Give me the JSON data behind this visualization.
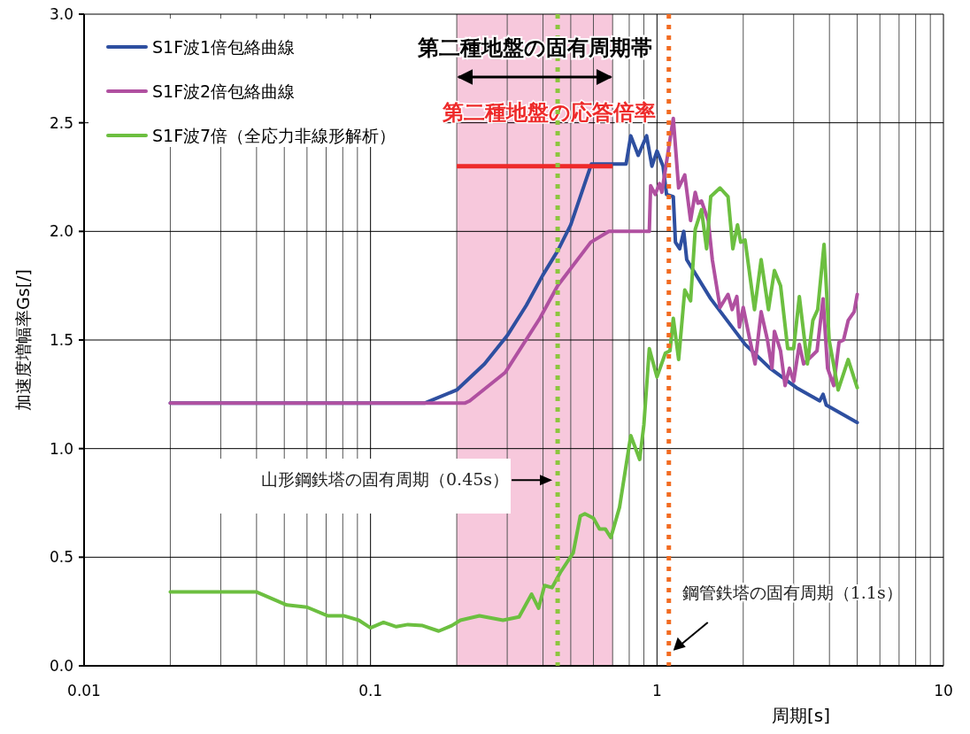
{
  "chart_data": {
    "type": "line",
    "xlabel": "周期[s]",
    "ylabel": "加速度増幅率Gs[/]",
    "log": "x",
    "xlim": [
      0.01,
      10
    ],
    "ylim": [
      0,
      3
    ],
    "xticks": [
      0.01,
      0.1,
      1,
      10
    ],
    "yticks": [
      {
        "value": 0,
        "label": "0.0"
      },
      0.5,
      {
        "value": 1,
        "label": "1.0"
      },
      1.5,
      {
        "value": 2,
        "label": "2.0"
      },
      2.5,
      {
        "value": 3,
        "label": "3.0"
      }
    ],
    "grid": true,
    "legend": "top left",
    "series": [
      {
        "name": "S1F波1倍包絡曲線",
        "color": "#2e4fa0",
        "x": [
          0.02,
          0.155,
          0.2,
          0.25,
          0.3,
          0.35,
          0.4,
          0.45,
          0.5,
          0.59,
          0.7,
          0.78,
          0.81,
          0.86,
          0.92,
          0.96,
          1.0,
          1.05,
          1.08,
          1.14,
          1.16,
          1.2,
          1.24,
          1.27,
          1.54,
          2.03,
          2.48,
          3.07,
          3.7,
          3.8,
          3.9,
          5.0
        ],
        "values": [
          1.21,
          1.21,
          1.27,
          1.39,
          1.52,
          1.66,
          1.8,
          1.91,
          2.03,
          2.31,
          2.31,
          2.31,
          2.44,
          2.35,
          2.44,
          2.3,
          2.37,
          2.3,
          2.17,
          2.16,
          1.95,
          1.92,
          2.0,
          1.87,
          1.69,
          1.48,
          1.37,
          1.28,
          1.22,
          1.25,
          1.2,
          1.12
        ]
      },
      {
        "name": "S1F波2倍包絡曲線",
        "color": "#b050a0",
        "x": [
          0.02,
          0.214,
          0.222,
          0.295,
          0.39,
          0.45,
          0.587,
          0.68,
          0.92,
          0.94,
          0.95,
          0.986,
          1.02,
          1.04,
          1.08,
          1.14,
          1.19,
          1.25,
          1.31,
          1.36,
          1.39,
          1.43,
          1.51,
          1.56,
          1.66,
          1.77,
          1.83,
          1.9,
          1.94,
          2.0,
          2.11,
          2.2,
          2.31,
          2.43,
          2.52,
          2.57,
          2.7,
          2.8,
          2.9,
          3.0,
          3.14,
          3.25,
          3.37,
          3.62,
          3.8,
          3.94,
          4.14,
          4.32,
          4.48,
          4.65,
          4.88,
          5.0
        ],
        "values": [
          1.21,
          1.21,
          1.22,
          1.35,
          1.6,
          1.75,
          1.95,
          2.0,
          2.0,
          2.0,
          2.21,
          2.17,
          2.22,
          2.18,
          2.32,
          2.52,
          2.2,
          2.26,
          2.05,
          2.18,
          2.13,
          2.14,
          2.05,
          1.87,
          1.65,
          1.71,
          1.64,
          1.7,
          1.56,
          1.65,
          1.5,
          1.39,
          1.63,
          1.5,
          1.37,
          1.54,
          1.45,
          1.29,
          1.37,
          1.31,
          1.48,
          1.39,
          1.41,
          1.45,
          1.69,
          1.37,
          1.29,
          1.49,
          1.5,
          1.59,
          1.63,
          1.71
        ]
      },
      {
        "name": "S1F波7倍（全応力非線形解析）",
        "color": "#6cbf40",
        "x": [
          0.02,
          0.04,
          0.051,
          0.06,
          0.071,
          0.081,
          0.091,
          0.1,
          0.111,
          0.123,
          0.135,
          0.152,
          0.173,
          0.192,
          0.206,
          0.24,
          0.29,
          0.33,
          0.365,
          0.386,
          0.405,
          0.43,
          0.46,
          0.51,
          0.54,
          0.56,
          0.6,
          0.63,
          0.66,
          0.69,
          0.74,
          0.81,
          0.87,
          0.9,
          0.94,
          1.0,
          1.07,
          1.11,
          1.14,
          1.19,
          1.25,
          1.31,
          1.36,
          1.43,
          1.49,
          1.54,
          1.66,
          1.77,
          1.84,
          1.91,
          1.96,
          2.03,
          2.19,
          2.31,
          2.45,
          2.57,
          2.7,
          2.86,
          3.0,
          3.14,
          3.35,
          3.5,
          3.64,
          3.83,
          3.99,
          4.29,
          4.65,
          5.0
        ],
        "values": [
          0.34,
          0.34,
          0.28,
          0.27,
          0.23,
          0.23,
          0.21,
          0.175,
          0.2,
          0.18,
          0.19,
          0.185,
          0.16,
          0.185,
          0.21,
          0.23,
          0.21,
          0.225,
          0.33,
          0.265,
          0.37,
          0.36,
          0.43,
          0.52,
          0.69,
          0.7,
          0.68,
          0.63,
          0.63,
          0.59,
          0.73,
          1.06,
          0.95,
          1.11,
          1.46,
          1.33,
          1.44,
          1.45,
          1.6,
          1.41,
          1.73,
          1.68,
          2.01,
          2.1,
          1.92,
          2.16,
          2.2,
          2.16,
          1.92,
          2.03,
          1.95,
          1.96,
          1.64,
          1.87,
          1.64,
          1.82,
          1.75,
          1.46,
          1.46,
          1.7,
          1.39,
          1.59,
          1.64,
          1.94,
          1.5,
          1.27,
          1.41,
          1.28
        ]
      }
    ],
    "bands": [
      {
        "axis": "x",
        "from": 0.2,
        "to": 0.7,
        "label": "第二種地盤の固有周期帯",
        "color": "#f7c8dc"
      }
    ],
    "ref_lines": [
      {
        "axis": "y",
        "value": 2.3,
        "label": "第二種地盤の応答倍率",
        "color": "#ee2a2a",
        "line_style": "solid"
      },
      {
        "axis": "x",
        "value": 0.45,
        "label": "山形鋼鉄塔の固有周期（0.45s）",
        "color": "#8cc63e",
        "line_style": "dotted"
      },
      {
        "axis": "x",
        "value": 1.1,
        "label": "鋼管鉄塔の固有周期（1.1s）",
        "color": "#f26c22",
        "line_style": "dotted"
      }
    ]
  }
}
